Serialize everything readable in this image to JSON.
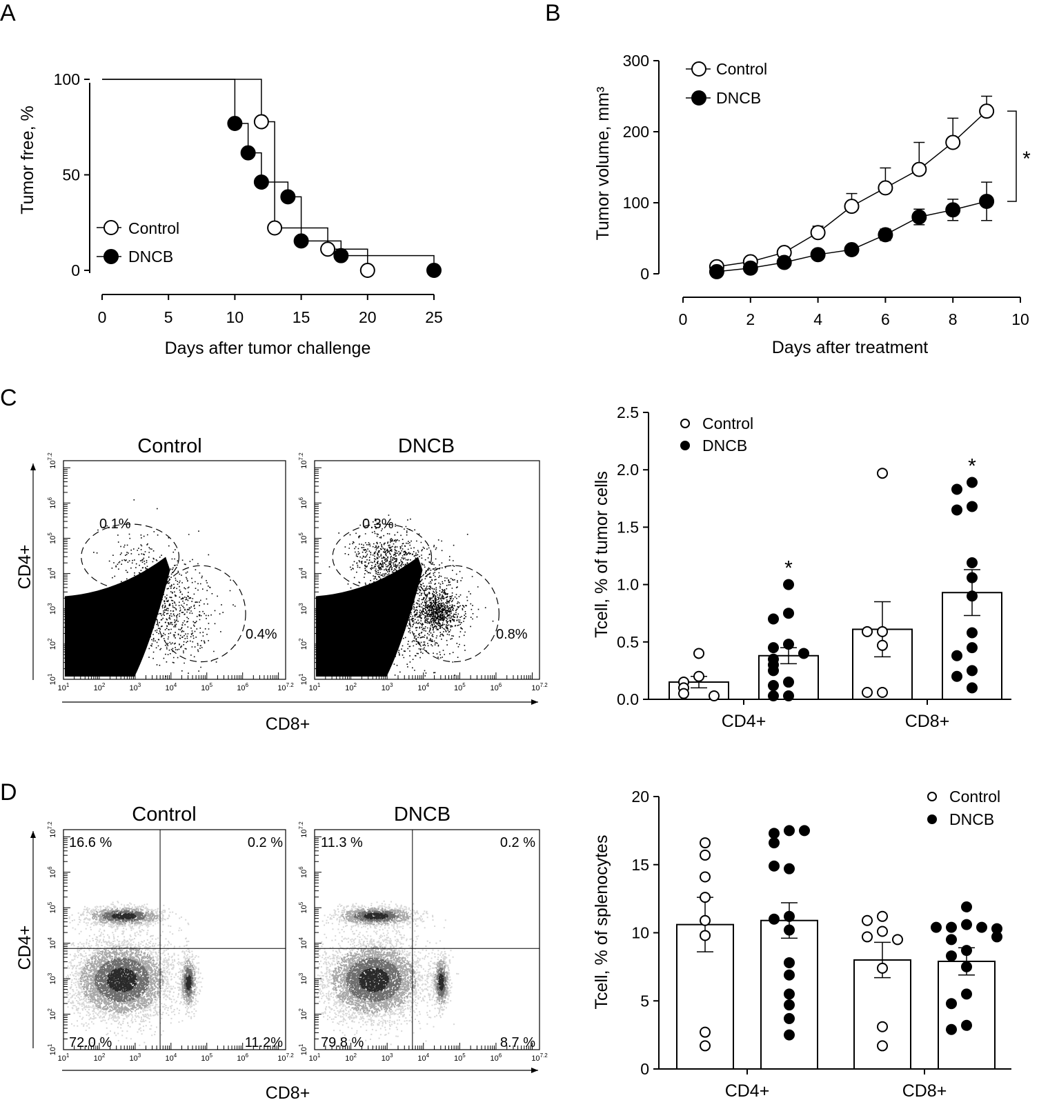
{
  "panels": {
    "A": {
      "letter": "A",
      "chart_data": {
        "type": "line",
        "subtype": "kaplan-meier step",
        "xlabel": "Days after tumor challenge",
        "ylabel": "Tumor free, %",
        "xlim": [
          0,
          25
        ],
        "ylim": [
          0,
          100
        ],
        "xticks": [
          0,
          5,
          10,
          15,
          20,
          25
        ],
        "yticks": [
          0,
          50,
          100
        ],
        "legend": [
          "Control",
          "DNCB"
        ],
        "legend_position": "bottom-left",
        "series": [
          {
            "name": "Control",
            "marker": "open-circle",
            "steps": [
              [
                0,
                100
              ],
              [
                12,
                100
              ],
              [
                12,
                77.8
              ],
              [
                13,
                77.8
              ],
              [
                13,
                22.2
              ],
              [
                17,
                22.2
              ],
              [
                17,
                11.1
              ],
              [
                20,
                11.1
              ],
              [
                20,
                0
              ]
            ],
            "markers": [
              [
                12,
                77.8
              ],
              [
                13,
                22.2
              ],
              [
                17,
                11.1
              ],
              [
                20,
                0
              ]
            ]
          },
          {
            "name": "DNCB",
            "marker": "filled-circle",
            "steps": [
              [
                0,
                100
              ],
              [
                10,
                100
              ],
              [
                10,
                76.9
              ],
              [
                11,
                76.9
              ],
              [
                11,
                61.5
              ],
              [
                12,
                61.5
              ],
              [
                12,
                46.2
              ],
              [
                14,
                46.2
              ],
              [
                14,
                38.5
              ],
              [
                15,
                38.5
              ],
              [
                15,
                15.4
              ],
              [
                18,
                15.4
              ],
              [
                18,
                7.7
              ],
              [
                25,
                7.7
              ],
              [
                25,
                0
              ]
            ],
            "markers": [
              [
                10,
                76.9
              ],
              [
                11,
                61.5
              ],
              [
                12,
                46.2
              ],
              [
                14,
                38.5
              ],
              [
                15,
                15.4
              ],
              [
                18,
                7.7
              ],
              [
                25,
                0
              ]
            ]
          }
        ]
      }
    },
    "B": {
      "letter": "B",
      "chart_data": {
        "type": "line",
        "xlabel": "Days after treatment",
        "ylabel": "Tumor volume, mm³",
        "xlim": [
          0,
          10
        ],
        "ylim": [
          0,
          300
        ],
        "xticks": [
          0,
          2,
          4,
          6,
          8,
          10
        ],
        "yticks": [
          0,
          100,
          200,
          300
        ],
        "legend": [
          "Control",
          "DNCB"
        ],
        "legend_position": "top-left",
        "significance": "*",
        "x": [
          1,
          2,
          3,
          4,
          5,
          6,
          7,
          8,
          9
        ],
        "series": [
          {
            "name": "Control",
            "marker": "open-circle",
            "values": [
              10,
              17,
              30,
              58,
              95,
              121,
              147,
              185,
              229
            ],
            "errors": [
              3,
              4,
              5,
              9,
              18,
              28,
              38,
              34,
              21
            ]
          },
          {
            "name": "DNCB",
            "marker": "filled-circle",
            "values": [
              3,
              8,
              16,
              27,
              34,
              55,
              80,
              90,
              102
            ],
            "errors": [
              2,
              3,
              4,
              5,
              6,
              8,
              11,
              15,
              27
            ]
          }
        ]
      }
    },
    "C": {
      "letter": "C",
      "flow": {
        "titles": [
          "Control",
          "DNCB"
        ],
        "xlabel": "CD8+",
        "ylabel": "CD4+",
        "tick_labels": [
          "10",
          "10",
          "10",
          "10",
          "10",
          "10",
          "10"
        ],
        "tick_exponents": [
          "1",
          "2",
          "3",
          "4",
          "5",
          "6",
          "7.2"
        ],
        "gates": [
          {
            "upper": "0.1%",
            "right": "0.4%"
          },
          {
            "upper": "0.3%",
            "right": "0.8%"
          }
        ]
      },
      "chart_data": {
        "type": "bar",
        "subtype": "bar with individual points",
        "ylabel": "Tcell, % of tumor cells",
        "ylim": [
          0,
          2.5
        ],
        "yticks": [
          "0.0",
          "0.5",
          "1.0",
          "1.5",
          "2.0",
          "2.5"
        ],
        "categories": [
          "CD4+",
          "CD8+"
        ],
        "legend": [
          "Control",
          "DNCB"
        ],
        "legend_position": "top-left",
        "significance": [
          "*",
          "*"
        ],
        "series": [
          {
            "name": "Control",
            "marker": "open-circle",
            "values": [
              0.15,
              0.61
            ],
            "errors": [
              0.05,
              0.24
            ],
            "points": [
              [
                0.4,
                0.2,
                0.15,
                0.1,
                0.05,
                0.03
              ],
              [
                1.97,
                0.59,
                0.59,
                0.47,
                0.06,
                0.06
              ]
            ]
          },
          {
            "name": "DNCB",
            "marker": "filled-circle",
            "values": [
              0.38,
              0.93
            ],
            "errors": [
              0.07,
              0.2
            ],
            "points": [
              [
                1.0,
                0.75,
                0.7,
                0.48,
                0.45,
                0.4,
                0.35,
                0.3,
                0.25,
                0.15,
                0.12,
                0.03,
                0.03
              ],
              [
                1.89,
                1.83,
                1.68,
                1.65,
                1.19,
                1.06,
                0.9,
                0.58,
                0.45,
                0.38,
                0.25,
                0.2,
                0.1
              ]
            ]
          }
        ]
      }
    },
    "D": {
      "letter": "D",
      "flow": {
        "titles": [
          "Control",
          "DNCB"
        ],
        "xlabel": "CD8+",
        "ylabel": "CD4+",
        "tick_labels": [
          "10",
          "10",
          "10",
          "10",
          "10",
          "10",
          "10"
        ],
        "tick_exponents": [
          "1",
          "2",
          "3",
          "4",
          "5",
          "6",
          "7.2"
        ],
        "quadrants": [
          {
            "ul": "16.6 %",
            "ur": "0.2 %",
            "ll": "72.0 %",
            "lr": "11.2%"
          },
          {
            "ul": "11.3 %",
            "ur": "0.2 %",
            "ll": "79.8 %",
            "lr": "8.7 %"
          }
        ]
      },
      "chart_data": {
        "type": "bar",
        "subtype": "bar with individual points",
        "ylabel": "Tcell, % of splenocytes",
        "ylim": [
          0,
          20
        ],
        "yticks": [
          "0",
          "5",
          "10",
          "15",
          "20"
        ],
        "categories": [
          "CD4+",
          "CD8+"
        ],
        "legend": [
          "Control",
          "DNCB"
        ],
        "legend_position": "top-right",
        "series": [
          {
            "name": "Control",
            "marker": "open-circle",
            "values": [
              10.6,
              8.0
            ],
            "errors": [
              2.0,
              1.3
            ],
            "points": [
              [
                16.6,
                15.7,
                14.1,
                12.6,
                10.9,
                9.8,
                2.7,
                1.7
              ],
              [
                11.2,
                10.9,
                10.1,
                9.7,
                9.5,
                7.4,
                3.1,
                1.7
              ]
            ]
          },
          {
            "name": "DNCB",
            "marker": "filled-circle",
            "values": [
              10.9,
              7.9
            ],
            "errors": [
              1.3,
              1.0
            ],
            "points": [
              [
                17.5,
                17.3,
                17.5,
                16.6,
                14.7,
                14.9,
                11.2,
                11.0,
                10.2,
                7.8,
                6.9,
                5.5,
                4.7,
                3.7,
                2.5
              ],
              [
                11.9,
                10.6,
                10.4,
                10.4,
                10.4,
                10.3,
                9.7,
                9.5,
                8.7,
                8.3,
                7.5,
                5.5,
                4.8,
                3.2,
                2.9
              ]
            ]
          }
        ]
      }
    }
  }
}
